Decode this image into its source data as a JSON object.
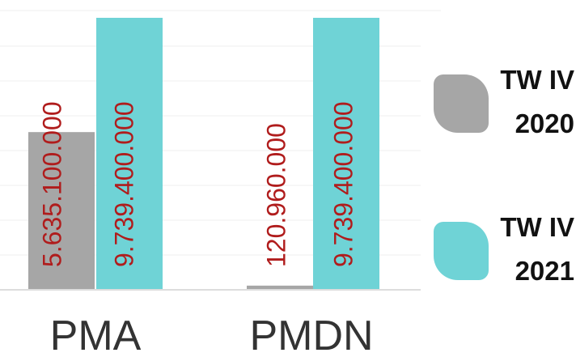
{
  "chart_data": {
    "type": "bar",
    "categories": [
      "PMA",
      "PMDN"
    ],
    "series": [
      {
        "name": "TW IV 2020",
        "color": "#a6a6a6",
        "values": [
          5635100000,
          120960000
        ],
        "labels": [
          "5.635.100.000",
          "120.960.000"
        ]
      },
      {
        "name": "TW IV 2021",
        "color": "#6fd3d6",
        "values": [
          9739400000,
          9739400000
        ],
        "labels": [
          "9.739.400.000",
          "9.739.400.000"
        ]
      }
    ],
    "label_color": "#b01c1c",
    "axis_color": "#dddddd"
  },
  "legend": {
    "items": [
      {
        "label": "TW IV\n2020",
        "color": "#a6a6a6"
      },
      {
        "label": "TW IV\n2021",
        "color": "#6fd3d6"
      }
    ]
  }
}
